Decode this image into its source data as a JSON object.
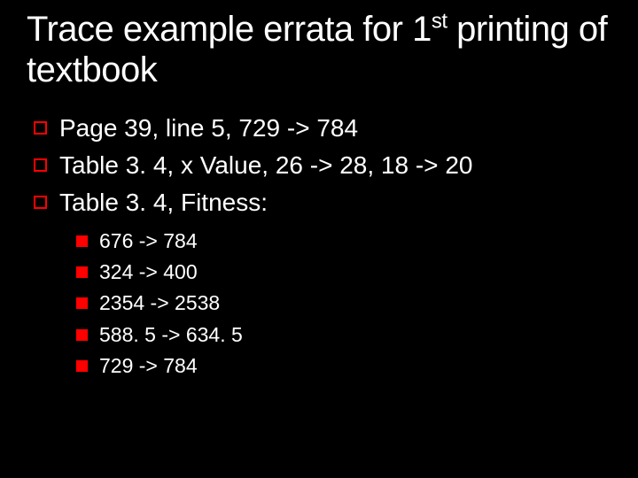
{
  "title_main": "Trace example errata for 1",
  "title_sup": "st",
  "title_after": " printing of textbook",
  "level1": [
    "Page 39, line 5, 729 -> 784",
    "Table 3. 4, x Value, 26 -> 28, 18 -> 20",
    "Table 3. 4, Fitness:"
  ],
  "level2": [
    "676 -> 784",
    "324 -> 400",
    "2354 -> 2538",
    "588. 5 -> 634. 5",
    "729 -> 784"
  ],
  "colors": {
    "background": "#000000",
    "text": "#ffffff",
    "bullet": "#ff0000"
  },
  "typography": {
    "title_fontsize": 40,
    "level1_fontsize": 28,
    "level2_fontsize": 23,
    "font_family": "Verdana"
  }
}
